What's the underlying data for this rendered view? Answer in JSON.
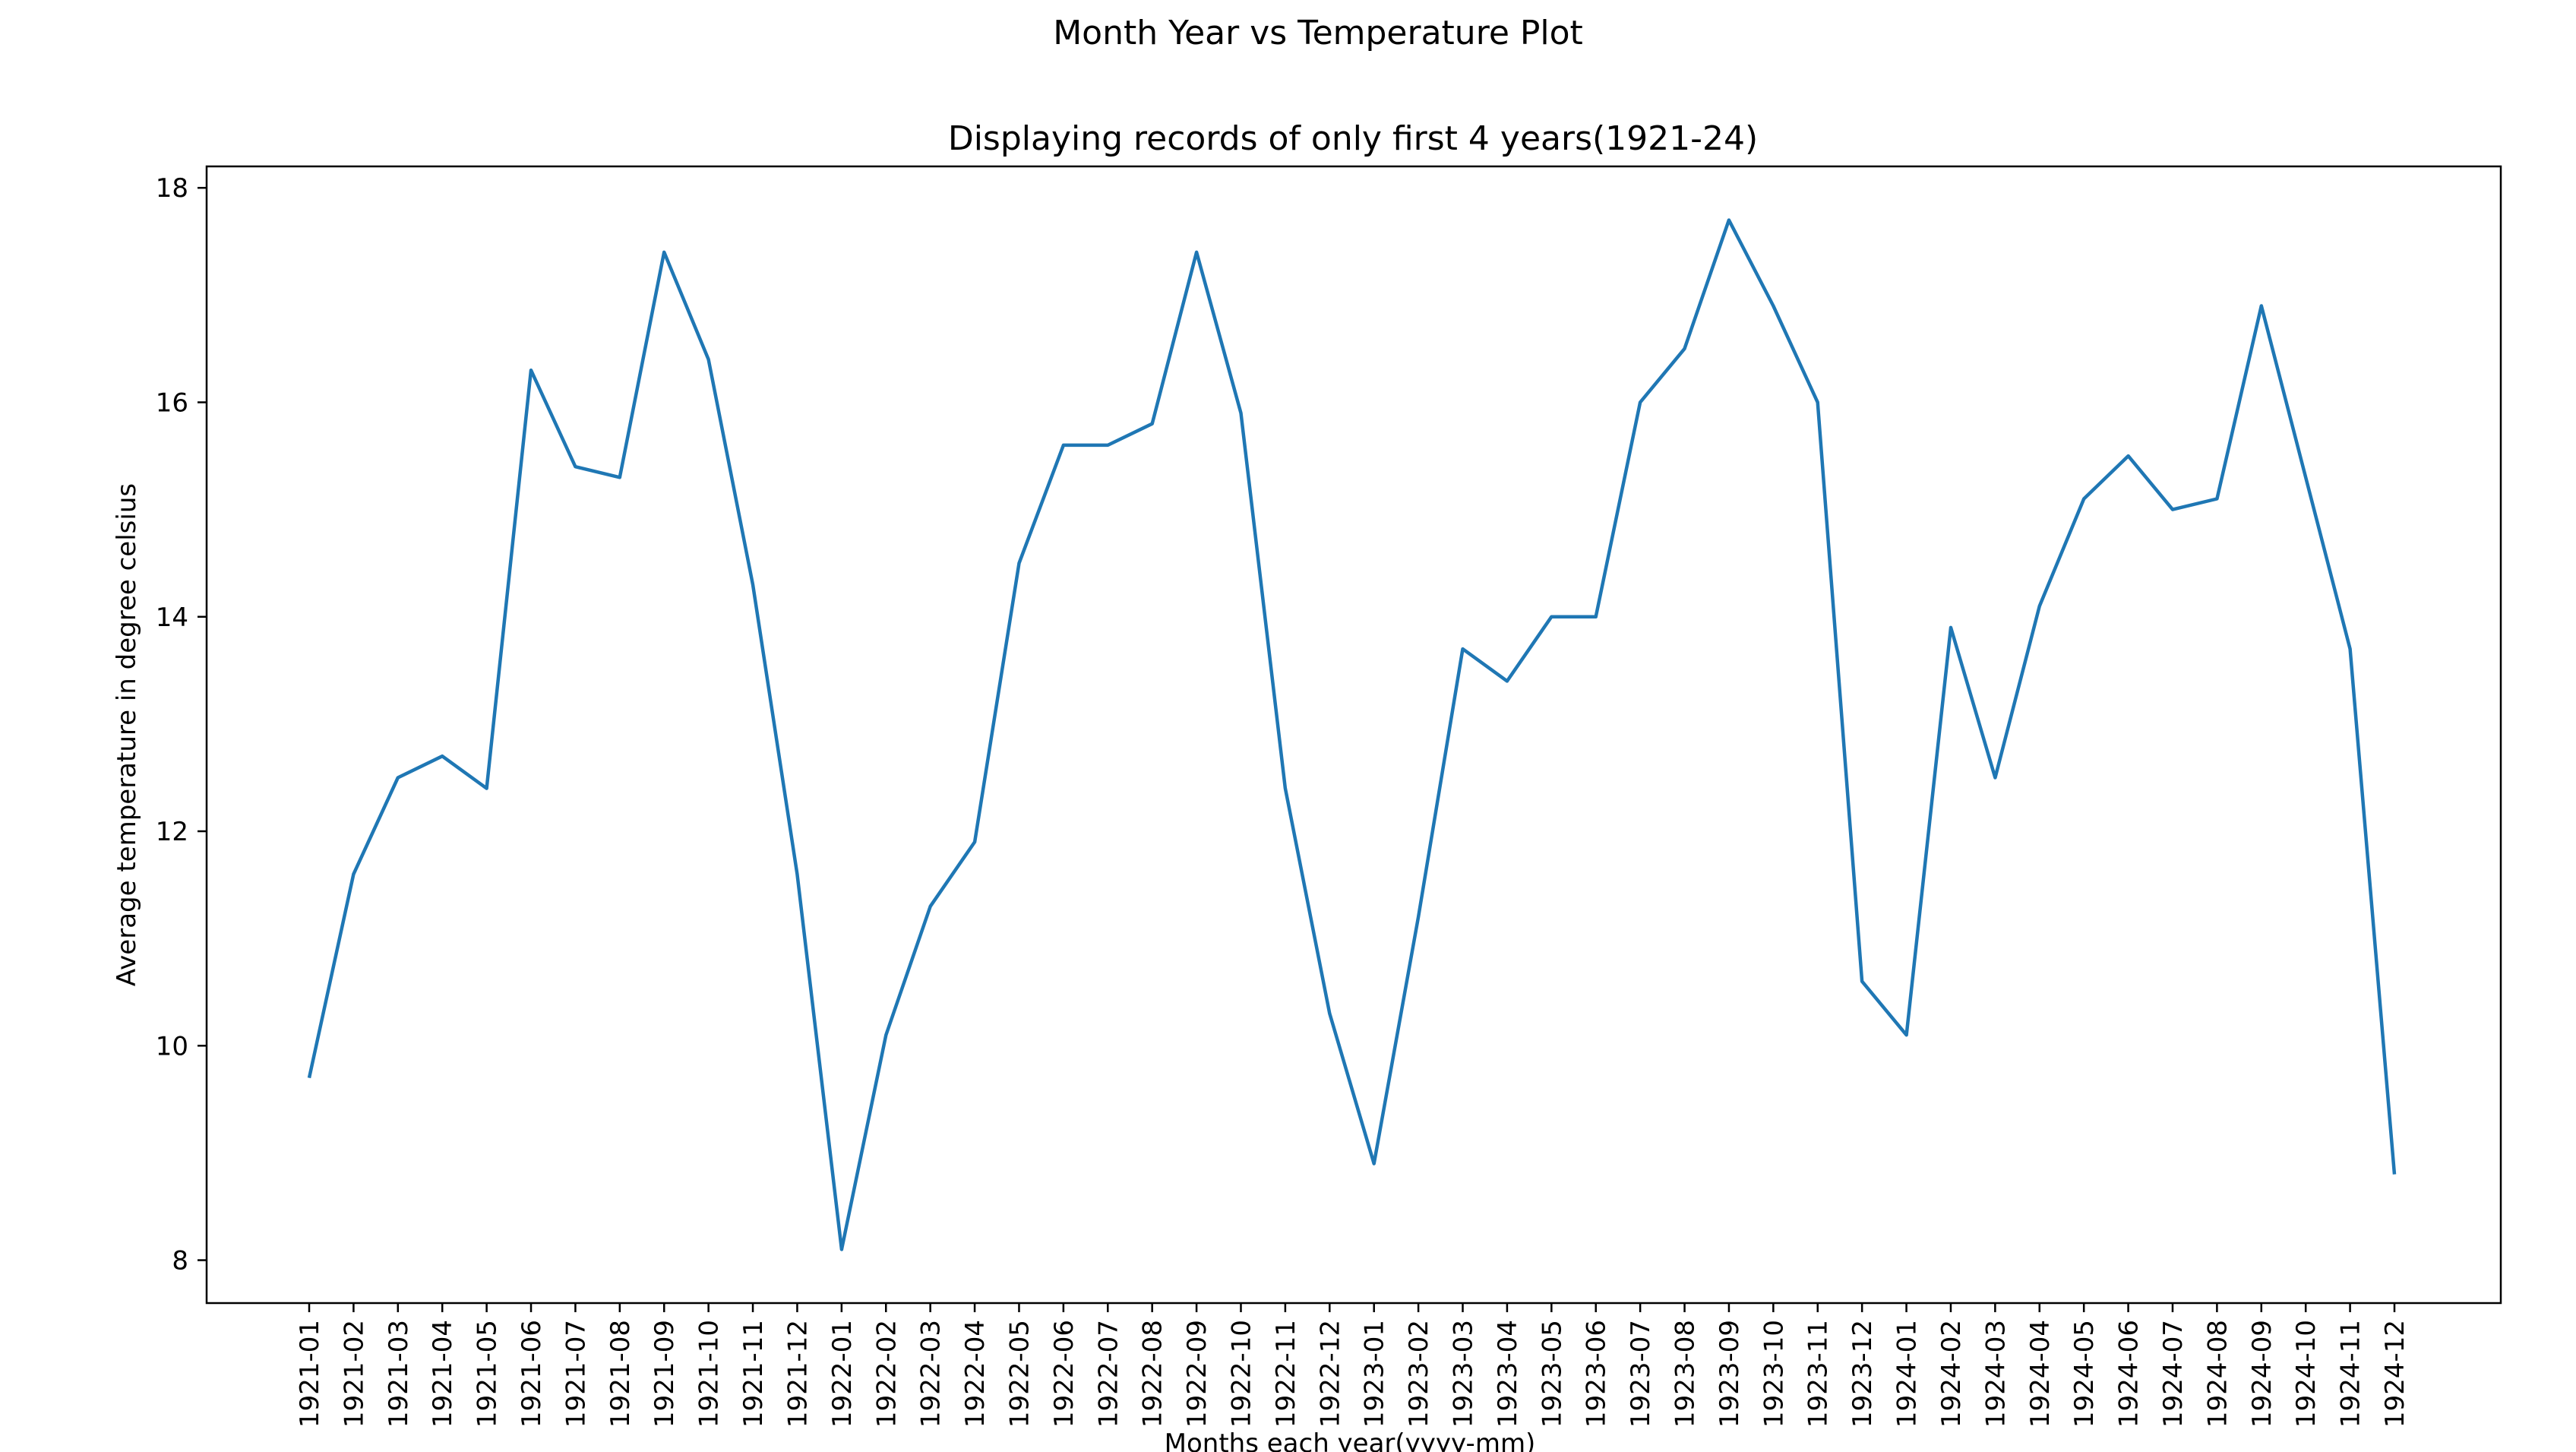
{
  "chart_data": {
    "type": "line",
    "suptitle": "Month Year vs Temperature Plot",
    "title": "Displaying records of only first 4 years(1921-24)",
    "xlabel": "Months each year(yyyy-mm)",
    "ylabel": "Average temperature in degree celsius",
    "ylim": [
      7.6,
      18.2
    ],
    "yticks": [
      8,
      10,
      12,
      14,
      16,
      18
    ],
    "grid": false,
    "line_color": "#1f77b4",
    "categories": [
      "1921-01",
      "1921-02",
      "1921-03",
      "1921-04",
      "1921-05",
      "1921-06",
      "1921-07",
      "1921-08",
      "1921-09",
      "1921-10",
      "1921-11",
      "1921-12",
      "1922-01",
      "1922-02",
      "1922-03",
      "1922-04",
      "1922-05",
      "1922-06",
      "1922-07",
      "1922-08",
      "1922-09",
      "1922-10",
      "1922-11",
      "1922-12",
      "1923-01",
      "1923-02",
      "1923-03",
      "1923-04",
      "1923-05",
      "1923-06",
      "1923-07",
      "1923-08",
      "1923-09",
      "1923-10",
      "1923-11",
      "1923-12",
      "1924-01",
      "1924-02",
      "1924-03",
      "1924-04",
      "1924-05",
      "1924-06",
      "1924-07",
      "1924-08",
      "1924-09",
      "1924-10",
      "1924-11",
      "1924-12"
    ],
    "values": [
      9.7,
      11.6,
      12.5,
      12.7,
      12.4,
      16.3,
      15.4,
      15.3,
      17.4,
      16.4,
      14.3,
      11.6,
      8.1,
      10.1,
      11.3,
      11.9,
      14.5,
      15.6,
      15.6,
      15.8,
      17.4,
      15.9,
      12.4,
      10.3,
      8.9,
      11.2,
      13.7,
      13.4,
      14.0,
      14.0,
      16.0,
      16.5,
      17.7,
      16.9,
      16.0,
      10.6,
      10.1,
      13.9,
      12.5,
      14.1,
      15.1,
      15.5,
      15.0,
      15.1,
      16.9,
      15.3,
      13.7,
      8.8
    ]
  }
}
